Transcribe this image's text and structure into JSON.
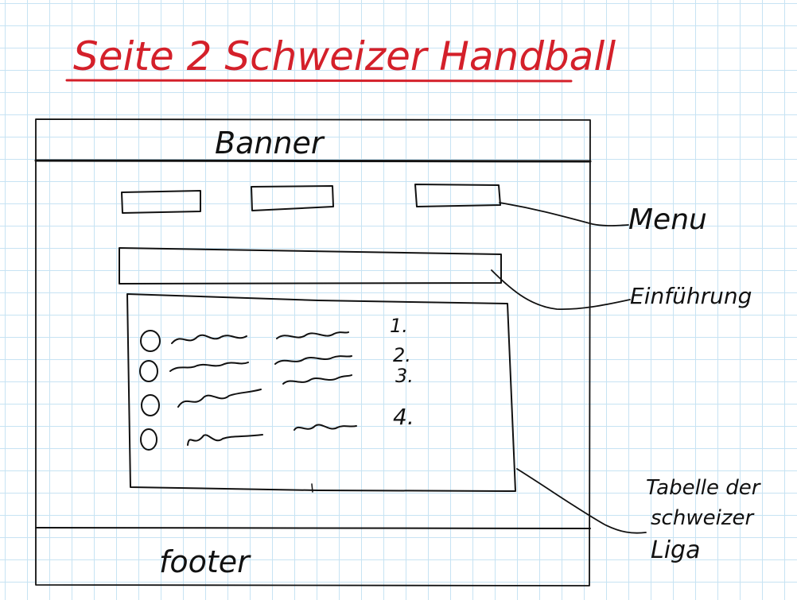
{
  "page_title": "Seite 2 Schweizer Handball",
  "wireframe": {
    "banner_label": "Banner",
    "footer_label": "footer",
    "league_table": {
      "rank_labels": [
        "1.",
        "2.",
        "3.",
        "4."
      ]
    }
  },
  "annotations": {
    "menu": "Menu",
    "intro": "Einführung",
    "table_lines": [
      "Tabelle der",
      "schweizer",
      "Liga"
    ]
  },
  "colors": {
    "ink": "#111111",
    "title_red": "#d4202a",
    "grid": "#c7e3f3",
    "paper": "#ffffff"
  }
}
